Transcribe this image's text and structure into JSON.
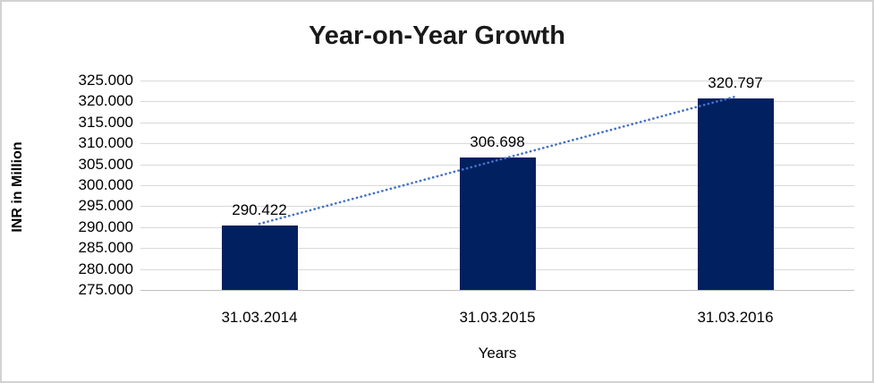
{
  "chart_data": {
    "type": "bar",
    "title": "Year-on-Year Growth",
    "xlabel": "Years",
    "ylabel": "INR in Million",
    "categories": [
      "31.03.2014",
      "31.03.2015",
      "31.03.2016"
    ],
    "values": [
      290.422,
      306.698,
      320.797
    ],
    "data_labels": [
      "290.422",
      "306.698",
      "320.797"
    ],
    "ylim": [
      275,
      325
    ],
    "ytick_step": 5,
    "ytick_labels": [
      "275.000",
      "280.000",
      "285.000",
      "290.000",
      "295.000",
      "300.000",
      "305.000",
      "310.000",
      "315.000",
      "320.000",
      "325.000"
    ],
    "grid": "horizontal",
    "legend_position": "none",
    "trendline": {
      "type": "linear",
      "style": "dotted"
    },
    "colors": {
      "bar": "#002060",
      "trendline": "#4472C4",
      "gridline": "#d9d9d9",
      "axis_line": "#bfbfbf",
      "text": "#000000",
      "frame_border": "#d2d2d2",
      "background": "#ffffff"
    }
  }
}
